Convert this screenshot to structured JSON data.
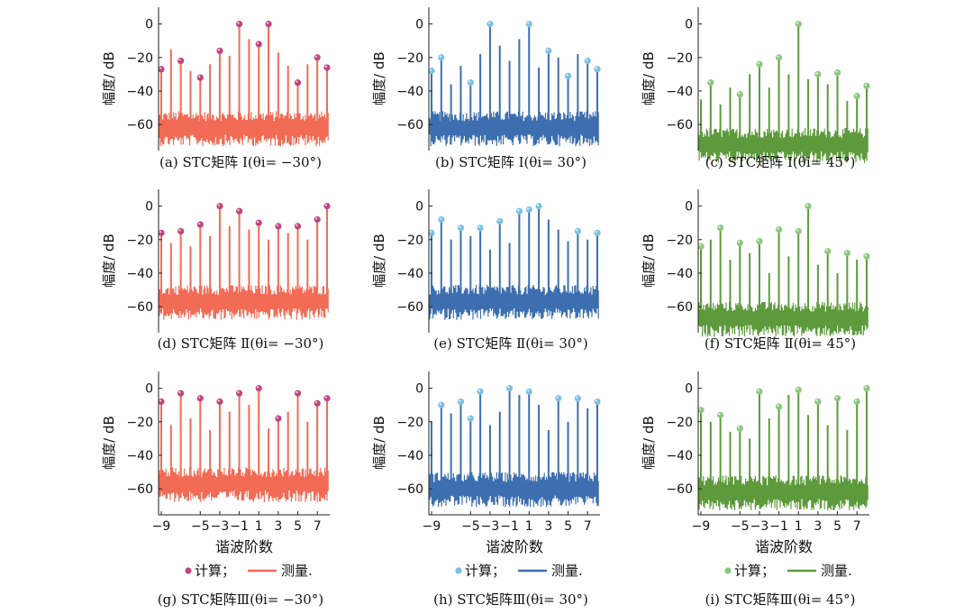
{
  "figure": {
    "ylabel": "幅度/ dB",
    "xlabel": "谐波阶数",
    "legend": {
      "calc_label": "计算；",
      "meas_label": "测量."
    }
  },
  "chart_data": [
    {
      "id": "a",
      "type": "bar",
      "color": "#f26b55",
      "dot_color": "#c2437d",
      "caption": "(a) STC矩阵 Ⅰ(θi= −30°)",
      "x": [
        -9,
        -8,
        -7,
        -6,
        -5,
        -4,
        -3,
        -2,
        -1,
        0,
        1,
        2,
        3,
        4,
        5,
        6,
        7,
        8
      ],
      "calc": [
        -27,
        -15,
        -22,
        -28,
        -32,
        -24,
        -16,
        -19,
        0,
        -9,
        -12,
        0,
        -17,
        -25,
        -35,
        -24,
        -20,
        -26
      ],
      "meas": [
        -27,
        -15,
        -22,
        -28,
        -32,
        -24,
        -16,
        -19,
        0,
        -9,
        -12,
        0,
        -17,
        -25,
        -35,
        -24,
        -20,
        -26
      ],
      "show_dot": [
        1,
        0,
        1,
        0,
        1,
        0,
        1,
        0,
        1,
        0,
        1,
        1,
        0,
        0,
        1,
        0,
        1,
        1
      ],
      "noise_floor": -60,
      "xlim": [
        -9,
        8
      ],
      "ylim": [
        -75,
        10
      ],
      "yticks": [
        0,
        -20,
        -40,
        -60
      ],
      "xticks": [
        -9,
        -5,
        -3,
        -1,
        1,
        3,
        5,
        7
      ],
      "show_xticks": false
    },
    {
      "id": "b",
      "type": "bar",
      "color": "#3d6fb0",
      "dot_color": "#7cc0e6",
      "caption": "(b) STC矩阵 Ⅰ(θi= 30°)",
      "x": [
        -9,
        -8,
        -7,
        -6,
        -5,
        -4,
        -3,
        -2,
        -1,
        0,
        1,
        2,
        3,
        4,
        5,
        6,
        7,
        8
      ],
      "calc": [
        -28,
        -20,
        -36,
        -25,
        -35,
        -18,
        0,
        -13,
        -22,
        -9,
        0,
        -26,
        -16,
        -20,
        -31,
        -18,
        -22,
        -27
      ],
      "meas": [
        -28,
        -20,
        -36,
        -25,
        -35,
        -18,
        0,
        -13,
        -22,
        -9,
        0,
        -26,
        -16,
        -20,
        -31,
        -18,
        -22,
        -27
      ],
      "show_dot": [
        1,
        1,
        0,
        0,
        1,
        0,
        1,
        0,
        0,
        0,
        1,
        0,
        1,
        0,
        1,
        0,
        1,
        1
      ],
      "noise_floor": -60,
      "xlim": [
        -9,
        8
      ],
      "ylim": [
        -75,
        10
      ],
      "yticks": [
        0,
        -20,
        -40,
        -60
      ],
      "xticks": [
        -9,
        -5,
        -3,
        -1,
        1,
        3,
        5,
        7
      ],
      "show_xticks": false
    },
    {
      "id": "c",
      "type": "bar",
      "color": "#5d9a3c",
      "dot_color": "#8cc77e",
      "caption": "(c) STC矩阵 Ⅰ(θi= 45°)",
      "x": [
        -9,
        -8,
        -7,
        -6,
        -5,
        -4,
        -3,
        -2,
        -1,
        0,
        1,
        2,
        3,
        4,
        5,
        6,
        7,
        8
      ],
      "calc": [
        -45,
        -35,
        -48,
        -38,
        -42,
        -30,
        -24,
        -38,
        -20,
        -30,
        0,
        -33,
        -30,
        -36,
        -29,
        -46,
        -43,
        -37
      ],
      "meas": [
        -45,
        -35,
        -48,
        -38,
        -42,
        -30,
        -24,
        -38,
        -20,
        -30,
        0,
        -33,
        -30,
        -36,
        -29,
        -46,
        -43,
        -37
      ],
      "show_dot": [
        0,
        1,
        0,
        0,
        1,
        0,
        1,
        0,
        1,
        0,
        1,
        0,
        1,
        0,
        1,
        0,
        1,
        1
      ],
      "noise_floor": -70,
      "xlim": [
        -9,
        8
      ],
      "ylim": [
        -75,
        10
      ],
      "yticks": [
        0,
        -20,
        -40,
        -60
      ],
      "xticks": [
        -9,
        -5,
        -3,
        -1,
        1,
        3,
        5,
        7
      ],
      "show_xticks": false
    },
    {
      "id": "d",
      "type": "bar",
      "color": "#f26b55",
      "dot_color": "#c2437d",
      "caption": "(d) STC矩阵 Ⅱ(θi= −30°)",
      "x": [
        -9,
        -8,
        -7,
        -6,
        -5,
        -4,
        -3,
        -2,
        -1,
        0,
        1,
        2,
        3,
        4,
        5,
        6,
        7,
        8
      ],
      "calc": [
        -16,
        -22,
        -15,
        -24,
        -11,
        -18,
        0,
        -12,
        -3,
        -14,
        -10,
        -20,
        -12,
        -16,
        -12,
        -20,
        -8,
        0
      ],
      "meas": [
        -16,
        -22,
        -15,
        -24,
        -11,
        -18,
        0,
        -12,
        -3,
        -14,
        -10,
        -20,
        -12,
        -16,
        -12,
        -20,
        -8,
        0
      ],
      "show_dot": [
        1,
        0,
        1,
        0,
        1,
        0,
        1,
        0,
        1,
        0,
        1,
        0,
        1,
        0,
        1,
        0,
        1,
        1
      ],
      "noise_floor": -55,
      "xlim": [
        -9,
        8
      ],
      "ylim": [
        -75,
        10
      ],
      "yticks": [
        0,
        -20,
        -40,
        -60
      ],
      "xticks": [
        -9,
        -5,
        -3,
        -1,
        1,
        3,
        5,
        7
      ],
      "show_xticks": false
    },
    {
      "id": "e",
      "type": "bar",
      "color": "#3d6fb0",
      "dot_color": "#7cc0e6",
      "caption": "(e) STC矩阵 Ⅱ(θi= 30°)",
      "x": [
        -9,
        -8,
        -7,
        -6,
        -5,
        -4,
        -3,
        -2,
        -1,
        0,
        1,
        2,
        3,
        4,
        5,
        6,
        7,
        8
      ],
      "calc": [
        -16,
        -8,
        -20,
        -13,
        -18,
        -13,
        -26,
        -9,
        -22,
        -3,
        -2,
        0,
        -8,
        -14,
        -21,
        -15,
        -20,
        -16
      ],
      "meas": [
        -16,
        -8,
        -20,
        -13,
        -18,
        -13,
        -26,
        -9,
        -22,
        -3,
        -2,
        0,
        -8,
        -14,
        -21,
        -15,
        -20,
        -16
      ],
      "show_dot": [
        1,
        1,
        0,
        1,
        0,
        1,
        0,
        1,
        0,
        1,
        1,
        1,
        0,
        0,
        0,
        1,
        0,
        1
      ],
      "noise_floor": -55,
      "xlim": [
        -9,
        8
      ],
      "ylim": [
        -75,
        10
      ],
      "yticks": [
        0,
        -20,
        -40,
        -60
      ],
      "xticks": [
        -9,
        -5,
        -3,
        -1,
        1,
        3,
        5,
        7
      ],
      "show_xticks": false
    },
    {
      "id": "f",
      "type": "bar",
      "color": "#5d9a3c",
      "dot_color": "#8cc77e",
      "caption": "(f) STC矩阵 Ⅱ(θi= 45°)",
      "x": [
        -9,
        -8,
        -7,
        -6,
        -5,
        -4,
        -3,
        -2,
        -1,
        0,
        1,
        2,
        3,
        4,
        5,
        6,
        7,
        8
      ],
      "calc": [
        -24,
        -20,
        -13,
        -32,
        -22,
        -28,
        -21,
        -40,
        -14,
        -30,
        -15,
        0,
        -35,
        -27,
        -40,
        -28,
        -32,
        -30
      ],
      "meas": [
        -24,
        -20,
        -13,
        -32,
        -22,
        -28,
        -21,
        -40,
        -14,
        -30,
        -15,
        0,
        -35,
        -27,
        -40,
        -28,
        -32,
        -30
      ],
      "show_dot": [
        1,
        0,
        1,
        0,
        1,
        0,
        1,
        0,
        1,
        0,
        1,
        1,
        0,
        1,
        0,
        1,
        0,
        1
      ],
      "noise_floor": -65,
      "xlim": [
        -9,
        8
      ],
      "ylim": [
        -75,
        10
      ],
      "yticks": [
        0,
        -20,
        -40,
        -60
      ],
      "xticks": [
        -9,
        -5,
        -3,
        -1,
        1,
        3,
        5,
        7
      ],
      "show_xticks": false
    },
    {
      "id": "g",
      "type": "bar",
      "color": "#f26b55",
      "dot_color": "#c2437d",
      "caption": "(g) STC矩阵Ⅲ(θi= −30°)",
      "x": [
        -9,
        -8,
        -7,
        -6,
        -5,
        -4,
        -3,
        -2,
        -1,
        0,
        1,
        2,
        3,
        4,
        5,
        6,
        7,
        8
      ],
      "calc": [
        -8,
        -22,
        -3,
        -18,
        -6,
        -25,
        -8,
        -14,
        -3,
        -10,
        0,
        -24,
        -18,
        -14,
        -3,
        -20,
        -9,
        -6
      ],
      "meas": [
        -8,
        -22,
        -3,
        -18,
        -6,
        -25,
        -8,
        -14,
        -3,
        -10,
        0,
        -24,
        -18,
        -14,
        -3,
        -20,
        -9,
        -6
      ],
      "show_dot": [
        1,
        0,
        1,
        0,
        1,
        0,
        1,
        0,
        1,
        0,
        1,
        0,
        1,
        0,
        1,
        0,
        1,
        1
      ],
      "noise_floor": -55,
      "xlim": [
        -9,
        8
      ],
      "ylim": [
        -75,
        10
      ],
      "yticks": [
        0,
        -20,
        -40,
        -60
      ],
      "xticks": [
        -9,
        -5,
        -3,
        -1,
        1,
        3,
        5,
        7
      ],
      "show_xticks": true
    },
    {
      "id": "h",
      "type": "bar",
      "color": "#3d6fb0",
      "dot_color": "#7cc0e6",
      "caption": "(h) STC矩阵Ⅲ(θi= 30°)",
      "x": [
        -9,
        -8,
        -7,
        -6,
        -5,
        -4,
        -3,
        -2,
        -1,
        0,
        1,
        2,
        3,
        4,
        5,
        6,
        7,
        8
      ],
      "calc": [
        -20,
        -10,
        -15,
        -8,
        -18,
        -2,
        -22,
        -14,
        0,
        -4,
        -2,
        -10,
        -25,
        -6,
        -20,
        -6,
        -12,
        -8
      ],
      "meas": [
        -20,
        -10,
        -15,
        -8,
        -18,
        -2,
        -22,
        -14,
        0,
        -4,
        -2,
        -10,
        -25,
        -6,
        -20,
        -6,
        -12,
        -8
      ],
      "show_dot": [
        0,
        1,
        0,
        1,
        1,
        1,
        0,
        0,
        1,
        0,
        1,
        0,
        0,
        1,
        0,
        1,
        0,
        1
      ],
      "noise_floor": -58,
      "xlim": [
        -9,
        8
      ],
      "ylim": [
        -75,
        10
      ],
      "yticks": [
        0,
        -20,
        -40,
        -60
      ],
      "xticks": [
        -9,
        -5,
        -3,
        -1,
        1,
        3,
        5,
        7
      ],
      "show_xticks": true
    },
    {
      "id": "i",
      "type": "bar",
      "color": "#5d9a3c",
      "dot_color": "#8cc77e",
      "caption": "(i) STC矩阵Ⅲ(θi= 45°)",
      "x": [
        -9,
        -8,
        -7,
        -6,
        -5,
        -4,
        -3,
        -2,
        -1,
        0,
        1,
        2,
        3,
        4,
        5,
        6,
        7,
        8
      ],
      "calc": [
        -13,
        -20,
        -16,
        -26,
        -24,
        -30,
        -2,
        -18,
        -11,
        -4,
        -1,
        -16,
        -8,
        -22,
        -6,
        -25,
        -8,
        0
      ],
      "meas": [
        -13,
        -20,
        -16,
        -26,
        -24,
        -30,
        -2,
        -18,
        -11,
        -4,
        -1,
        -16,
        -8,
        -22,
        -6,
        -25,
        -8,
        0
      ],
      "show_dot": [
        1,
        0,
        1,
        0,
        1,
        0,
        1,
        0,
        1,
        0,
        1,
        0,
        1,
        0,
        1,
        0,
        1,
        1
      ],
      "noise_floor": -60,
      "xlim": [
        -9,
        8
      ],
      "ylim": [
        -75,
        10
      ],
      "yticks": [
        0,
        -20,
        -40,
        -60
      ],
      "xticks": [
        -9,
        -5,
        -3,
        -1,
        1,
        3,
        5,
        7
      ],
      "show_xticks": true
    }
  ]
}
